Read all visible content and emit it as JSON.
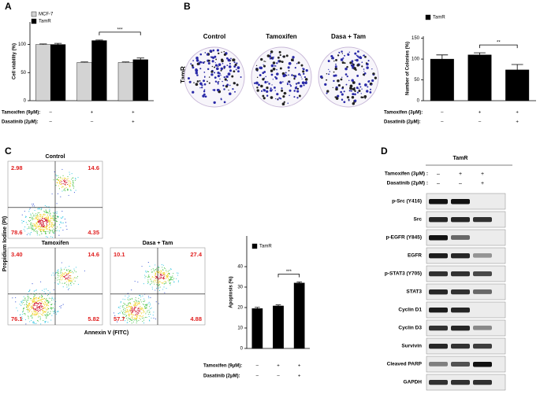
{
  "panel_labels": [
    "A",
    "B",
    "C",
    "D"
  ],
  "chart_data": [
    {
      "type": "bar",
      "y_label": "Cell viability (%)",
      "series": [
        {
          "name": "MCF-7",
          "color": "#d3d3d3",
          "values": [
            100,
            68,
            68
          ],
          "errors": [
            1,
            1,
            1
          ]
        },
        {
          "name": "TamR",
          "color": "#000000",
          "values": [
            100,
            107,
            73
          ],
          "errors": [
            2,
            1,
            3
          ]
        }
      ],
      "ylim": [
        0,
        140
      ],
      "yticks": [
        0,
        50,
        100
      ],
      "significance": "***",
      "treatments": [
        {
          "label": "Tamoxifen (9μM):",
          "values": [
            "–",
            "+",
            "+"
          ]
        },
        {
          "label": "Dasatinib (2μM):",
          "values": [
            "–",
            "–",
            "+"
          ]
        }
      ]
    },
    {
      "type": "bar",
      "y_label": "Number of Colonies (%)",
      "series": [
        {
          "name": "TamR",
          "color": "#000000",
          "values": [
            100,
            110,
            74
          ],
          "errors": [
            10,
            5,
            13
          ]
        }
      ],
      "ylim": [
        0,
        155
      ],
      "yticks": [
        0,
        50,
        100,
        150
      ],
      "significance": "**",
      "treatments": [
        {
          "label": "Tamoxifen (3μM):",
          "values": [
            "–",
            "+",
            "+"
          ]
        },
        {
          "label": "Dasatinib (2μM):",
          "values": [
            "–",
            "–",
            "+"
          ]
        }
      ]
    },
    {
      "type": "bar",
      "y_label": "Apoptosis (%)",
      "series": [
        {
          "name": "TamR",
          "color": "#000000",
          "values": [
            19.5,
            20.8,
            32
          ],
          "errors": [
            0.6,
            0.5,
            0.5
          ]
        }
      ],
      "ylim": [
        0,
        55
      ],
      "yticks": [
        0,
        10,
        20,
        30,
        40
      ],
      "significance": "***",
      "treatments": [
        {
          "label": "Tamoxifen (9μM):",
          "values": [
            "–",
            "+",
            "+"
          ]
        },
        {
          "label": "Dasatinib (2μM):",
          "values": [
            "–",
            "–",
            "+"
          ]
        }
      ]
    }
  ],
  "colony_assay": {
    "row_label": "TamR",
    "titles": [
      "Control",
      "Tamoxifen",
      "Dasa + Tam"
    ]
  },
  "flow_cytometry": {
    "y_label": "Propidium Iodine (PI)",
    "x_label": "Annexin V (FITC)",
    "plots": [
      {
        "title": "Control",
        "quadrants": [
          "2.98",
          "14.6",
          "78.6",
          "4.35"
        ]
      },
      {
        "title": "Tamoxifen",
        "quadrants": [
          "3.40",
          "14.6",
          "76.1",
          "5.82"
        ]
      },
      {
        "title": "Dasa + Tam",
        "quadrants": [
          "10.1",
          "27.4",
          "57.7",
          "4.88"
        ]
      }
    ]
  },
  "western_blot": {
    "header": "TamR",
    "treatments": [
      {
        "label": "Tamoxifen (3μM) :",
        "values": [
          "–",
          "+",
          "+"
        ]
      },
      {
        "label": "Dasatinib (2μM) :",
        "values": [
          "–",
          "–",
          "+"
        ]
      }
    ],
    "proteins": [
      "p-Src (Y416)",
      "Src",
      "p-EGFR (Y845)",
      "EGFR",
      "p-STAT3 (Y705)",
      "STAT3",
      "Cyclin D1",
      "Cyclin D3",
      "Survivin",
      "Cleaved PARP",
      "GAPDH"
    ]
  }
}
